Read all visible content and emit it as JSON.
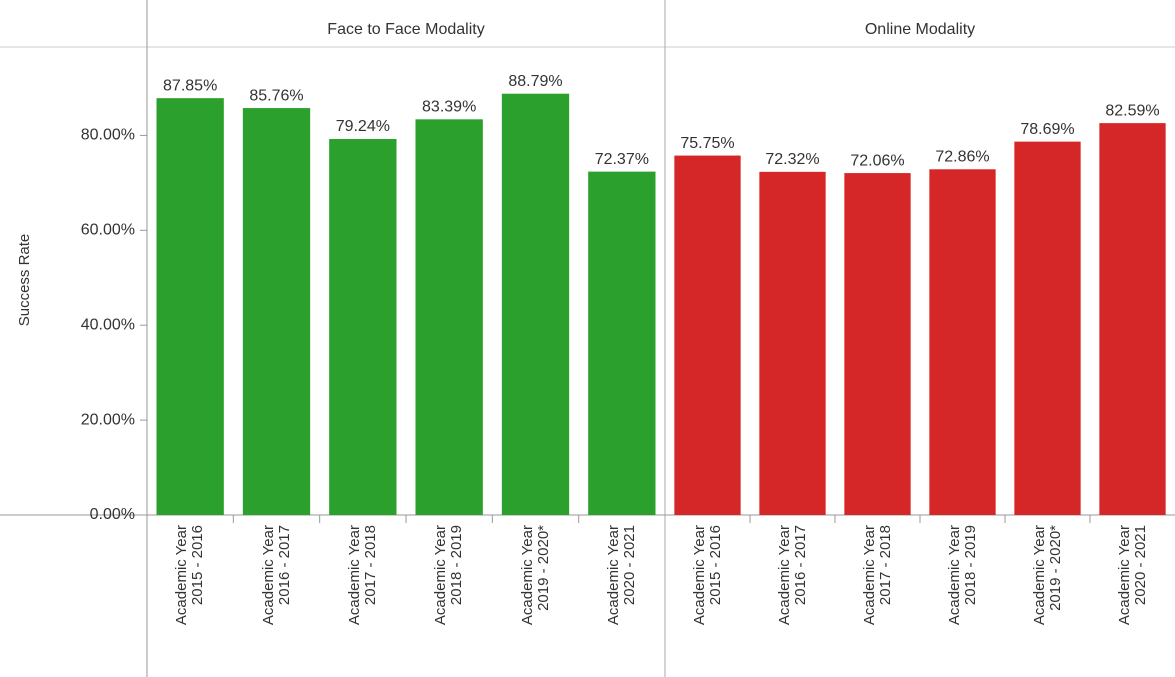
{
  "chart_data": [
    {
      "type": "bar",
      "title": "Face to Face Modality",
      "y_label": "Success Rate",
      "categories": [
        "Academic Year 2015 - 2016",
        "Academic Year 2016 - 2017",
        "Academic Year 2017 - 2018",
        "Academic Year 2018 - 2019",
        "Academic Year 2019 - 2020*",
        "Academic Year 2020 - 2021"
      ],
      "values": [
        87.85,
        85.76,
        79.24,
        83.39,
        88.79,
        72.37
      ],
      "value_labels": [
        "87.85%",
        "85.76%",
        "79.24%",
        "83.39%",
        "88.79%",
        "72.37%"
      ],
      "color": "#2ca02c",
      "ylim": [
        0,
        98
      ],
      "yticks": [
        {
          "value": 0,
          "label": "0.00%"
        },
        {
          "value": 20,
          "label": "20.00%"
        },
        {
          "value": 40,
          "label": "40.00%"
        },
        {
          "value": 60,
          "label": "60.00%"
        },
        {
          "value": 80,
          "label": "80.00%"
        }
      ]
    },
    {
      "type": "bar",
      "title": "Online Modality",
      "categories": [
        "Academic Year 2015 - 2016",
        "Academic Year 2016 - 2017",
        "Academic Year 2017 - 2018",
        "Academic Year 2018 - 2019",
        "Academic Year 2019 - 2020*",
        "Academic Year 2020 - 2021"
      ],
      "values": [
        75.75,
        72.32,
        72.06,
        72.86,
        78.69,
        82.59
      ],
      "value_labels": [
        "75.75%",
        "72.32%",
        "72.06%",
        "72.86%",
        "78.69%",
        "82.59%"
      ],
      "color": "#d62728",
      "ylim": [
        0,
        98
      ]
    }
  ]
}
